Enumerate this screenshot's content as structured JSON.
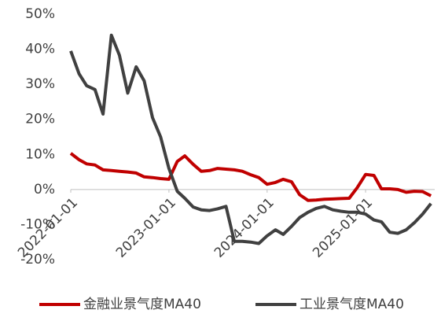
{
  "chart_data": {
    "type": "line",
    "x": [
      "2022-01-01",
      "2022-02-01",
      "2022-03-01",
      "2022-04-01",
      "2022-05-01",
      "2022-06-01",
      "2022-07-01",
      "2022-08-01",
      "2022-09-01",
      "2022-10-01",
      "2022-11-01",
      "2022-12-01",
      "2023-01-01",
      "2023-02-01",
      "2023-03-01",
      "2023-04-01",
      "2023-05-01",
      "2023-06-01",
      "2023-07-01",
      "2023-08-01",
      "2023-09-01",
      "2023-10-01",
      "2023-11-01",
      "2023-12-01",
      "2024-01-01",
      "2024-02-01",
      "2024-03-01",
      "2024-04-01",
      "2024-05-01",
      "2024-06-01",
      "2024-07-01",
      "2024-08-01",
      "2024-09-01",
      "2024-10-01",
      "2024-11-01",
      "2024-12-01",
      "2025-01-01",
      "2025-02-01",
      "2025-03-01",
      "2025-04-01",
      "2025-05-01",
      "2025-06-01",
      "2025-07-01",
      "2025-08-01",
      "2025-09-01"
    ],
    "series": [
      {
        "name": "金融业景气度MA40",
        "color": "#c00000",
        "values": [
          10.3,
          8.5,
          7.3,
          7,
          5.6,
          5.4,
          5.2,
          5,
          4.7,
          3.6,
          3.4,
          3.1,
          2.9,
          8,
          9.6,
          7.2,
          5.2,
          5.4,
          6,
          5.8,
          5.6,
          5.2,
          4.2,
          3.4,
          1.5,
          2,
          2.9,
          2.2,
          -1.5,
          -3.1,
          -3,
          -2.8,
          -2.7,
          -2.6,
          -2.5,
          0.5,
          4.3,
          4,
          0.2,
          0.2,
          0,
          -0.8,
          -0.5,
          -0.6,
          -1.8
        ]
      },
      {
        "name": "工业景气度MA40",
        "color": "#404040",
        "values": [
          39.5,
          33,
          29.6,
          28.5,
          21.5,
          44,
          38.3,
          27.5,
          35,
          31,
          20.5,
          15,
          6,
          -0.5,
          -2.5,
          -5,
          -5.8,
          -6,
          -5.5,
          -4.8,
          -14.8,
          -14.8,
          -15,
          -15.4,
          -13.2,
          -11.5,
          -12.8,
          -10.5,
          -8,
          -6.5,
          -5.4,
          -4.8,
          -5.8,
          -6.2,
          -6.5,
          -6.5,
          -7,
          -8.7,
          -9.2,
          -12.2,
          -12.5,
          -11.5,
          -9.5,
          -7,
          -4
        ]
      }
    ],
    "xlim": [
      "2022-01-01",
      "2025-09-15"
    ],
    "xticks": [
      "2022-01-01",
      "2023-01-01",
      "2024-01-01",
      "2025-01-01"
    ],
    "ylim": [
      -20,
      50
    ],
    "yticks": [
      {
        "value": -20,
        "label": "-20%"
      },
      {
        "value": -10,
        "label": "-10%"
      },
      {
        "value": 0,
        "label": "0%"
      },
      {
        "value": 10,
        "label": "10%"
      },
      {
        "value": 20,
        "label": "20%"
      },
      {
        "value": 30,
        "label": "30%"
      },
      {
        "value": 40,
        "label": "40%"
      },
      {
        "value": 50,
        "label": "50%"
      }
    ],
    "legend": "bottom"
  }
}
